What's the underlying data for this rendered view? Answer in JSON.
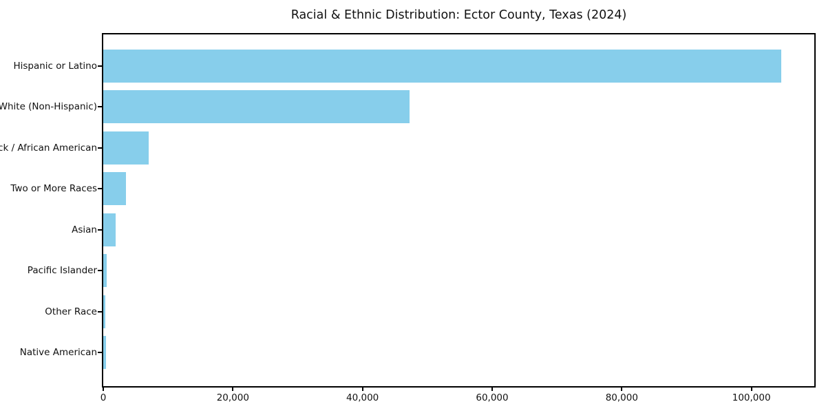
{
  "chart_data": {
    "type": "bar",
    "orientation": "horizontal",
    "title": "Racial & Ethnic Distribution: Ector County, Texas (2024)",
    "xlabel": "",
    "ylabel": "",
    "categories": [
      "Hispanic or Latino",
      "White (Non-Hispanic)",
      "Black / African American",
      "Two or More Races",
      "Asian",
      "Pacific Islander",
      "Other Race",
      "Native American"
    ],
    "values": [
      104600,
      47300,
      7000,
      3500,
      1900,
      500,
      300,
      400
    ],
    "xlim": [
      0,
      109700
    ],
    "x_ticks": [
      0,
      20000,
      40000,
      60000,
      80000,
      100000
    ],
    "x_tick_labels": [
      "0",
      "20,000",
      "40,000",
      "60,000",
      "80,000",
      "100,000"
    ],
    "bar_color": "#87CEEB",
    "spine_color": "#000000",
    "grid": false,
    "legend": false
  }
}
